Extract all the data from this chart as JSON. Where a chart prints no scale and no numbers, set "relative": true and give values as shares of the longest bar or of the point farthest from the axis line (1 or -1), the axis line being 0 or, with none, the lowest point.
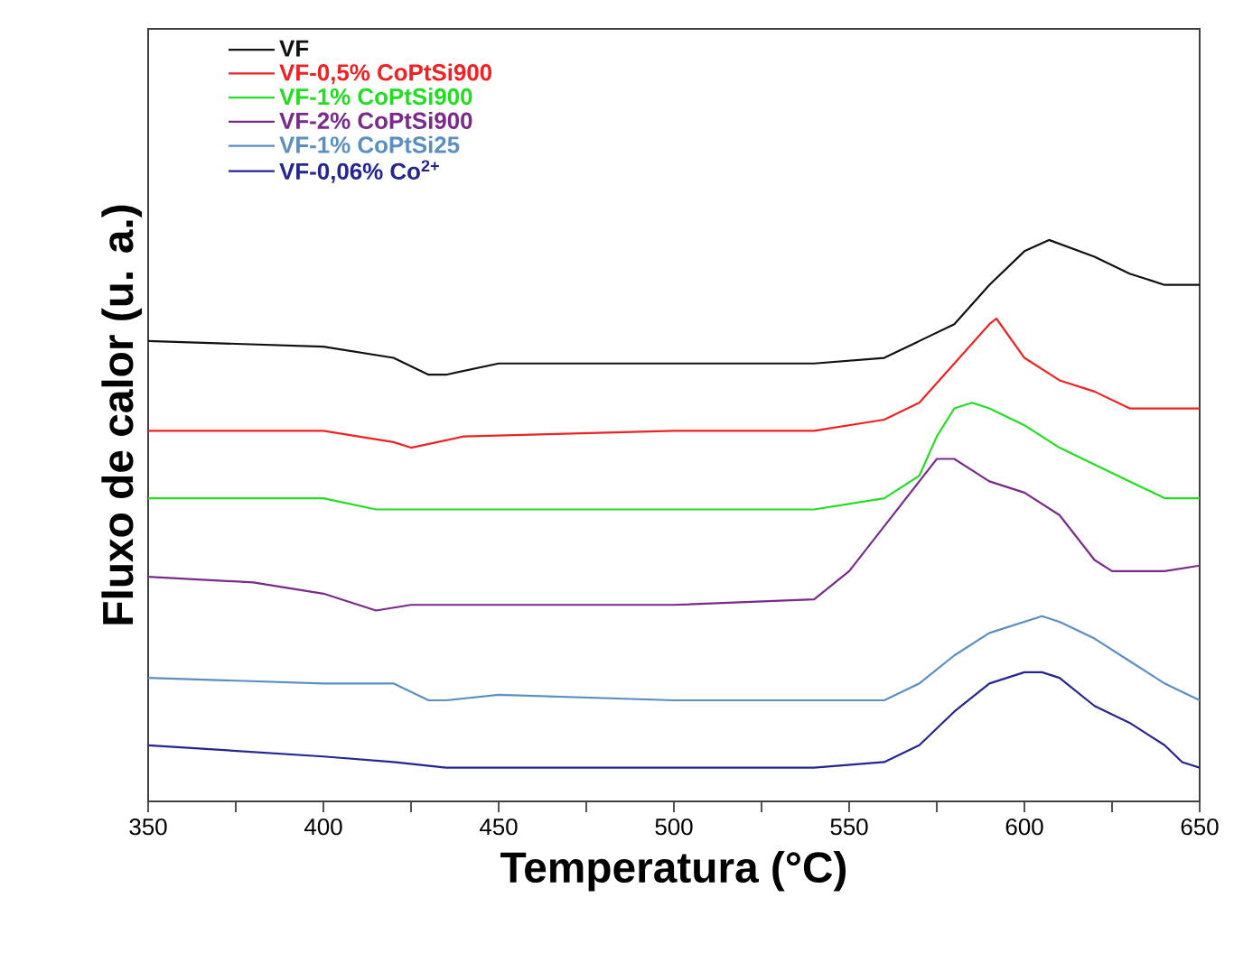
{
  "chart_data": {
    "type": "line",
    "xlabel": "Temperatura (°C)",
    "ylabel": "Fluxo de calor (u. a.)",
    "relative": true,
    "legend": "top left",
    "line_style": "solid",
    "xlim": [
      350,
      650
    ],
    "xticks": [
      350,
      {
        "value": 375,
        "label": null
      },
      400,
      {
        "value": 425,
        "label": null
      },
      450,
      {
        "value": 475,
        "label": null
      },
      500,
      {
        "value": 525,
        "label": null
      },
      550,
      {
        "value": 575,
        "label": null
      },
      600,
      {
        "value": 625,
        "label": null
      },
      650
    ],
    "series": [
      {
        "name": "VF",
        "color": "#111111",
        "x": [
          350,
          400,
          420,
          430,
          435,
          450,
          500,
          540,
          560,
          570,
          580,
          590,
          600,
          607,
          620,
          630,
          640,
          650
        ],
        "values": [
          0.82,
          0.81,
          0.79,
          0.76,
          0.76,
          0.78,
          0.78,
          0.78,
          0.79,
          0.82,
          0.85,
          0.92,
          0.98,
          1.0,
          0.97,
          0.94,
          0.92,
          0.92
        ]
      },
      {
        "name": "VF-0,5% CoPtSi900",
        "color": "#ee2222",
        "x": [
          350,
          400,
          420,
          425,
          440,
          500,
          540,
          560,
          570,
          580,
          590,
          592,
          600,
          610,
          620,
          630,
          640,
          650
        ],
        "values": [
          0.66,
          0.66,
          0.64,
          0.63,
          0.65,
          0.66,
          0.66,
          0.68,
          0.71,
          0.78,
          0.85,
          0.86,
          0.79,
          0.75,
          0.73,
          0.7,
          0.7,
          0.7
        ]
      },
      {
        "name": "VF-1% CoPtSi900",
        "color": "#22dd22",
        "x": [
          350,
          400,
          415,
          450,
          500,
          540,
          560,
          570,
          575,
          580,
          585,
          590,
          600,
          610,
          620,
          630,
          640,
          650
        ],
        "values": [
          0.54,
          0.54,
          0.52,
          0.52,
          0.52,
          0.52,
          0.54,
          0.58,
          0.65,
          0.7,
          0.71,
          0.7,
          0.67,
          0.63,
          0.6,
          0.57,
          0.54,
          0.54
        ]
      },
      {
        "name": "VF-2% CoPtSi900",
        "color": "#7a2a8a",
        "x": [
          350,
          380,
          400,
          410,
          415,
          425,
          450,
          500,
          540,
          550,
          560,
          570,
          575,
          580,
          590,
          600,
          610,
          620,
          625,
          640,
          650
        ],
        "values": [
          0.4,
          0.39,
          0.37,
          0.35,
          0.34,
          0.35,
          0.35,
          0.35,
          0.36,
          0.41,
          0.49,
          0.57,
          0.61,
          0.61,
          0.57,
          0.55,
          0.51,
          0.43,
          0.41,
          0.41,
          0.42
        ]
      },
      {
        "name": "VF-1% CoPtSi25",
        "color": "#5a8fc0",
        "x": [
          350,
          400,
          420,
          430,
          435,
          450,
          500,
          540,
          560,
          570,
          580,
          590,
          600,
          605,
          610,
          620,
          630,
          640,
          650
        ],
        "values": [
          0.22,
          0.21,
          0.21,
          0.18,
          0.18,
          0.19,
          0.18,
          0.18,
          0.18,
          0.21,
          0.26,
          0.3,
          0.32,
          0.33,
          0.32,
          0.29,
          0.25,
          0.21,
          0.18
        ]
      },
      {
        "name": "VF-0,06% Co$^{2+}$",
        "color": "#25258f",
        "x": [
          350,
          400,
          420,
          435,
          450,
          500,
          540,
          560,
          570,
          580,
          590,
          600,
          605,
          610,
          620,
          630,
          640,
          645,
          650
        ],
        "values": [
          0.1,
          0.08,
          0.07,
          0.06,
          0.06,
          0.06,
          0.06,
          0.07,
          0.1,
          0.16,
          0.21,
          0.23,
          0.23,
          0.22,
          0.17,
          0.14,
          0.1,
          0.07,
          0.06
        ]
      }
    ]
  }
}
